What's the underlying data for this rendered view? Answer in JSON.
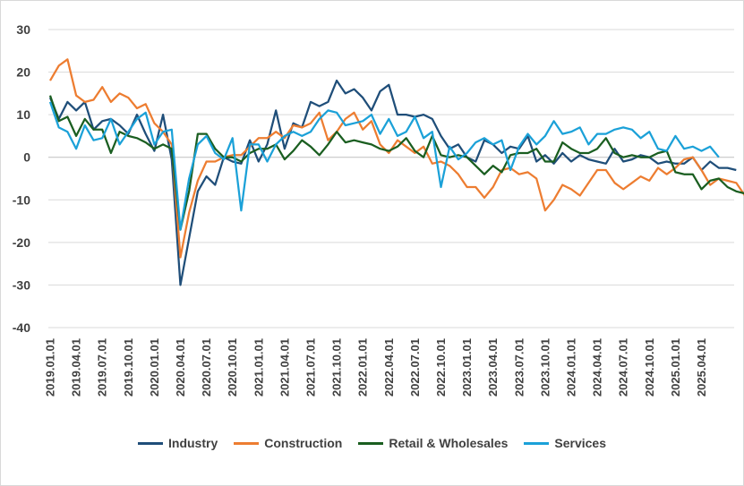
{
  "chart_data": {
    "type": "line",
    "title": "",
    "xlabel": "",
    "ylabel": "",
    "ylim": [
      -40,
      30
    ],
    "yticks": [
      "30",
      "20",
      "10",
      "0",
      "-10",
      "-20",
      "-30",
      "-40"
    ],
    "ytick_values": [
      30,
      20,
      10,
      0,
      -10,
      -20,
      -30,
      -40
    ],
    "xtick_labels": [
      "2019.01.01",
      "2019.04.01",
      "2019.07.01",
      "2019.10.01",
      "2020.01.01",
      "2020.04.01",
      "2020.07.01",
      "2020.10.01",
      "2021.01.01",
      "2021.04.01",
      "2021.07.01",
      "2021.10.01",
      "2022.01.01",
      "2022.04.01",
      "2022.07.01",
      "2022.10.01",
      "2023.01.01",
      "2023.04.01",
      "2023.07.01",
      "2023.10.01",
      "2024.01.01",
      "2024.04.01",
      "2024.07.01",
      "2024.10.01",
      "2025.01.01",
      "2025.04.01"
    ],
    "grid": "horizontal",
    "legend_position": "bottom",
    "x_start": "2019-01",
    "x_step": "monthly",
    "series": [
      {
        "name": "Industry",
        "color": "#1f4e79",
        "values": [
          14,
          9,
          13,
          11,
          13,
          6.5,
          8.5,
          9,
          7.5,
          5.5,
          10,
          5.5,
          1.5,
          10,
          -0.5,
          -30,
          -19,
          -8,
          -4.5,
          -6.5,
          0,
          -1,
          -1.5,
          4,
          -1,
          3,
          11,
          2,
          8,
          7,
          13,
          12,
          13,
          18,
          15,
          16,
          14,
          11,
          15.5,
          17,
          10,
          10,
          9.5,
          10,
          9,
          5,
          2,
          3,
          0,
          -1,
          4,
          3,
          1,
          2.5,
          2,
          5,
          -1,
          0.5,
          -1.5,
          1,
          -1,
          0.5,
          -0.5,
          -1,
          -1.5,
          2,
          -1,
          -0.5,
          0.5,
          0,
          -1.5,
          -1,
          -1.5,
          -1.5,
          0,
          -3,
          -1,
          -2.5,
          -2.5,
          -3
        ]
      },
      {
        "name": "Construction",
        "color": "#ed7d31",
        "values": [
          18,
          21.5,
          23,
          14.5,
          13,
          13.5,
          16.5,
          13,
          15,
          14,
          11.5,
          12.5,
          8,
          6,
          3,
          -23.5,
          -13,
          -5.5,
          -1,
          -1,
          0,
          0.5,
          0.5,
          2.5,
          4.5,
          4.5,
          6,
          4.5,
          7.5,
          7,
          8,
          10.5,
          4,
          6,
          9,
          10.5,
          6.5,
          8.5,
          3,
          1,
          4,
          2.5,
          1,
          2.5,
          -1.5,
          -1,
          -2,
          -4,
          -7,
          -7,
          -9.5,
          -7,
          -3,
          -2.5,
          -4,
          -3.5,
          -5,
          -12.5,
          -10,
          -6.5,
          -7.5,
          -9,
          -6,
          -3,
          -3,
          -6,
          -7.5,
          -6,
          -4.5,
          -5.5,
          -2.5,
          -4,
          -2.5,
          -0.5,
          0,
          -3,
          -6.5,
          -5,
          -5.5,
          -6,
          -9
        ]
      },
      {
        "name": "Retail & Wholesales",
        "color": "#1a5e20",
        "values": [
          14.5,
          8.5,
          9.5,
          5,
          9,
          6.5,
          6.5,
          1,
          6,
          5,
          4.5,
          3.5,
          2,
          3,
          2,
          -17,
          -8,
          5.5,
          5.5,
          2,
          0,
          0,
          -1,
          1,
          2,
          2,
          3,
          -0.5,
          1.5,
          4,
          2.5,
          0.5,
          3,
          6,
          3.5,
          4,
          3.5,
          3,
          2,
          1.5,
          2.5,
          4.5,
          1.5,
          0,
          5,
          0.5,
          0,
          0.5,
          0,
          -2,
          -4,
          -2,
          -3.5,
          0.5,
          1,
          1,
          2,
          -1,
          -1,
          3.5,
          2,
          1,
          1,
          2,
          4.5,
          1,
          0,
          0.5,
          0,
          0,
          1,
          1.5,
          -3.5,
          -4,
          -4,
          -7.5,
          -5.5,
          -5,
          -7,
          -8,
          -8.5
        ]
      },
      {
        "name": "Services",
        "color": "#1ba1d8",
        "values": [
          13,
          7,
          6,
          2,
          7.5,
          4,
          4.5,
          9,
          3,
          6,
          9,
          10.5,
          3,
          6,
          6.5,
          -17,
          -5,
          3,
          5,
          1,
          -0.5,
          4.5,
          -12.5,
          3,
          3,
          -1,
          3,
          5,
          6,
          5,
          6,
          9,
          11,
          10.5,
          7.5,
          8,
          8.5,
          10,
          5.5,
          9,
          5,
          6,
          9.5,
          4.5,
          6,
          -7,
          2.5,
          -0.5,
          1,
          3.5,
          4.5,
          3,
          4,
          -3,
          2.5,
          5.5,
          3,
          5,
          8.5,
          5.5,
          6,
          7,
          3,
          5.5,
          5.5,
          6.5,
          7,
          6.5,
          4.5,
          6,
          2,
          1.5,
          5,
          2,
          2.5,
          1.5,
          2.5,
          0
        ]
      }
    ]
  }
}
